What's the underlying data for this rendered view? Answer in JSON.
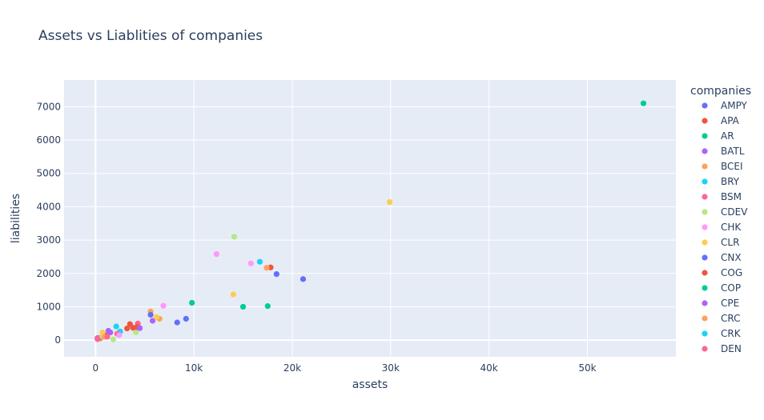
{
  "chart_data": {
    "type": "scatter",
    "title": "Assets vs Liablities of companies",
    "xlabel": "assets",
    "ylabel": "liabilities",
    "xlim": [
      -3200,
      59000
    ],
    "ylim": [
      -500,
      7800
    ],
    "x_ticks": [
      {
        "value": 0,
        "label": "0"
      },
      {
        "value": 10000,
        "label": "10k"
      },
      {
        "value": 20000,
        "label": "20k"
      },
      {
        "value": 30000,
        "label": "30k"
      },
      {
        "value": 40000,
        "label": "40k"
      },
      {
        "value": 50000,
        "label": "50k"
      }
    ],
    "y_ticks": [
      {
        "value": 0,
        "label": "0"
      },
      {
        "value": 1000,
        "label": "1000"
      },
      {
        "value": 2000,
        "label": "2000"
      },
      {
        "value": 3000,
        "label": "3000"
      },
      {
        "value": 4000,
        "label": "4000"
      },
      {
        "value": 5000,
        "label": "5000"
      },
      {
        "value": 6000,
        "label": "6000"
      },
      {
        "value": 7000,
        "label": "7000"
      }
    ],
    "grid": true,
    "background": "#e5ecf6",
    "legend": {
      "title": "companies",
      "position": "right"
    },
    "series": [
      {
        "name": "AMPY",
        "color": "#636efa",
        "points": [
          [
            900,
            150
          ],
          [
            18400,
            1980
          ],
          [
            21100,
            1830
          ],
          [
            9200,
            640
          ],
          [
            8300,
            530
          ]
        ]
      },
      {
        "name": "APA",
        "color": "#EF553B",
        "points": [
          [
            3500,
            480
          ],
          [
            3200,
            350
          ],
          [
            17800,
            2180
          ],
          [
            600,
            90
          ],
          [
            300,
            40
          ]
        ]
      },
      {
        "name": "AR",
        "color": "#00cc96",
        "points": [
          [
            55700,
            7100
          ],
          [
            9800,
            1120
          ],
          [
            15000,
            1000
          ],
          [
            17500,
            1020
          ],
          [
            800,
            130
          ]
        ]
      },
      {
        "name": "BATL",
        "color": "#ab63fa",
        "points": [
          [
            1300,
            280
          ],
          [
            5800,
            580
          ],
          [
            200,
            60
          ]
        ]
      },
      {
        "name": "BCEI",
        "color": "#FFA15A",
        "points": [
          [
            17400,
            2170
          ],
          [
            5600,
            860
          ],
          [
            6500,
            640
          ],
          [
            4300,
            420
          ],
          [
            500,
            50
          ]
        ]
      },
      {
        "name": "BRY",
        "color": "#19d3f3",
        "points": [
          [
            16700,
            2350
          ],
          [
            2100,
            410
          ],
          [
            2500,
            260
          ]
        ]
      },
      {
        "name": "BSM",
        "color": "#FF6692",
        "points": [
          [
            4300,
            500
          ],
          [
            2200,
            190
          ],
          [
            400,
            60
          ]
        ]
      },
      {
        "name": "CDEV",
        "color": "#B6E880",
        "points": [
          [
            14100,
            3100
          ],
          [
            1800,
            20
          ],
          [
            4100,
            240
          ],
          [
            700,
            120
          ]
        ]
      },
      {
        "name": "CHK",
        "color": "#FF97FF",
        "points": [
          [
            12300,
            2580
          ],
          [
            15800,
            2300
          ],
          [
            6900,
            1030
          ],
          [
            2400,
            150
          ]
        ]
      },
      {
        "name": "CLR",
        "color": "#FECB52",
        "points": [
          [
            29900,
            4140
          ],
          [
            14000,
            1370
          ],
          [
            6200,
            690
          ],
          [
            700,
            230
          ]
        ]
      },
      {
        "name": "CNX",
        "color": "#636efa",
        "points": [
          [
            5600,
            760
          ]
        ]
      },
      {
        "name": "COG",
        "color": "#EF553B",
        "points": [
          [
            3800,
            370
          ],
          [
            4200,
            390
          ],
          [
            1100,
            120
          ]
        ]
      },
      {
        "name": "COP",
        "color": "#00cc96",
        "points": []
      },
      {
        "name": "CPE",
        "color": "#ab63fa",
        "points": [
          [
            4500,
            360
          ],
          [
            1500,
            230
          ]
        ]
      },
      {
        "name": "CRC",
        "color": "#FFA15A",
        "points": [
          [
            900,
            100
          ]
        ]
      },
      {
        "name": "CRK",
        "color": "#19d3f3",
        "points": []
      },
      {
        "name": "DEN",
        "color": "#FF6692",
        "points": [
          [
            200,
            30
          ],
          [
            1200,
            100
          ]
        ]
      }
    ]
  }
}
